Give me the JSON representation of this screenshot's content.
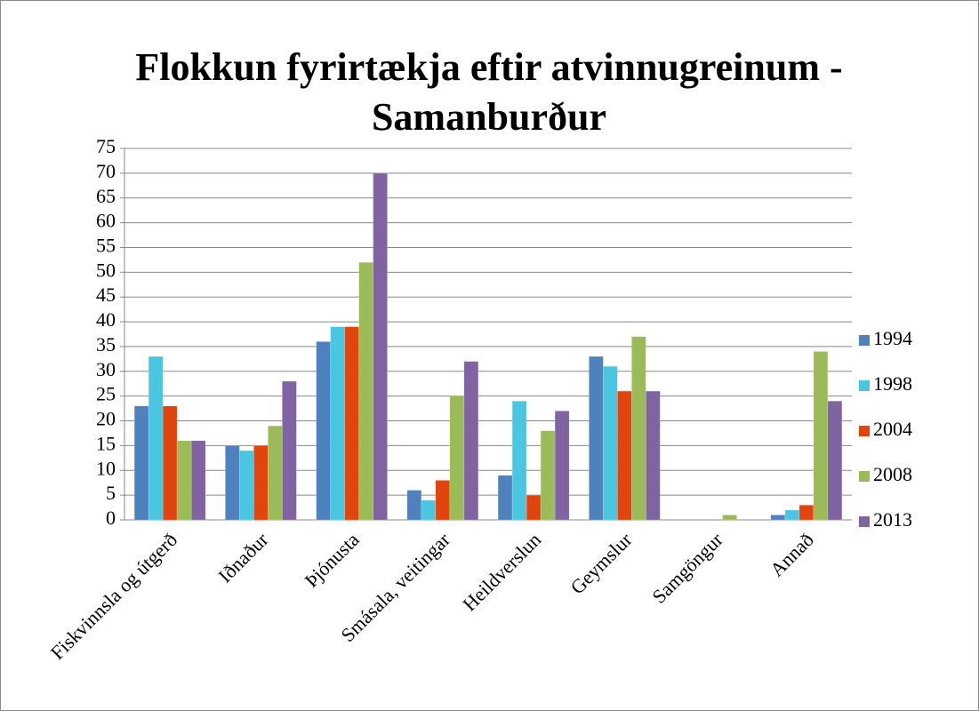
{
  "chart_data": {
    "type": "bar",
    "title": "Flokkun fyrirtækja eftir atvinnugreinum - Samanburður",
    "categories": [
      "Fiskvinnsla og útgerð",
      "Iðnaður",
      "Þjónusta",
      "Smásala, veitingar",
      "Heildverslun",
      "Geymslur",
      "Samgöngur",
      "Annað"
    ],
    "series": [
      {
        "name": "1994",
        "color": "#4f81bd",
        "values": [
          23,
          15,
          36,
          6,
          9,
          33,
          0,
          1
        ]
      },
      {
        "name": "1998",
        "color": "#4bc6e0",
        "values": [
          33,
          14,
          39,
          4,
          24,
          31,
          0,
          2
        ]
      },
      {
        "name": "2004",
        "color": "#e2440e",
        "values": [
          23,
          15,
          39,
          8,
          5,
          26,
          0,
          3
        ]
      },
      {
        "name": "2008",
        "color": "#9bbb59",
        "values": [
          16,
          19,
          52,
          25,
          18,
          37,
          1,
          34
        ]
      },
      {
        "name": "2013",
        "color": "#8064a2",
        "values": [
          16,
          28,
          70,
          32,
          22,
          26,
          0,
          24
        ]
      }
    ],
    "ylim": [
      0,
      75
    ],
    "yticks": [
      0,
      5,
      10,
      15,
      20,
      25,
      30,
      35,
      40,
      45,
      50,
      55,
      60,
      65,
      70,
      75
    ],
    "grid": true,
    "legend": "right"
  }
}
